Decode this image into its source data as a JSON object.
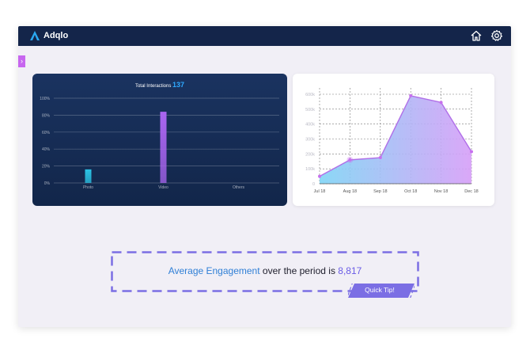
{
  "app": {
    "name": "Adqlo"
  },
  "header": {
    "icons": [
      "home-icon",
      "settings-icon"
    ]
  },
  "sidebar": {
    "toggle_glyph": "›"
  },
  "interactions_chart": {
    "title_prefix": "Total Interactions",
    "title_value": "137",
    "chart_data": {
      "type": "bar",
      "categories": [
        "Photo",
        "Video",
        "Others"
      ],
      "values": [
        16,
        84,
        0
      ],
      "ylabel": "",
      "xlabel": "",
      "ylim": [
        0,
        100
      ],
      "yticks": [
        "0%",
        "20%",
        "40%",
        "60%",
        "80%",
        "100%"
      ],
      "grid": true,
      "colors": {
        "Photo": "#2bc4e6",
        "Video": "#a965f0"
      }
    }
  },
  "trend_chart": {
    "chart_data": {
      "type": "area",
      "categories": [
        "Jul 18",
        "Aug 18",
        "Sep 18",
        "Oct 18",
        "Nov 18",
        "Dec 18"
      ],
      "values": [
        50000,
        160000,
        175000,
        590000,
        545000,
        215000
      ],
      "ylim": [
        0,
        600000
      ],
      "yticks": [
        "0",
        "100k",
        "200k",
        "300k",
        "400k",
        "500k",
        "600k"
      ],
      "grid": true,
      "colors": {
        "line": "#b06fe8",
        "fill_start": "#7ed4f5",
        "fill_end": "#d69ef7"
      }
    }
  },
  "tip": {
    "highlight": "Average Engagement",
    "middle": " over the period is ",
    "value": "8,817",
    "badge": "Quick Tip!"
  }
}
